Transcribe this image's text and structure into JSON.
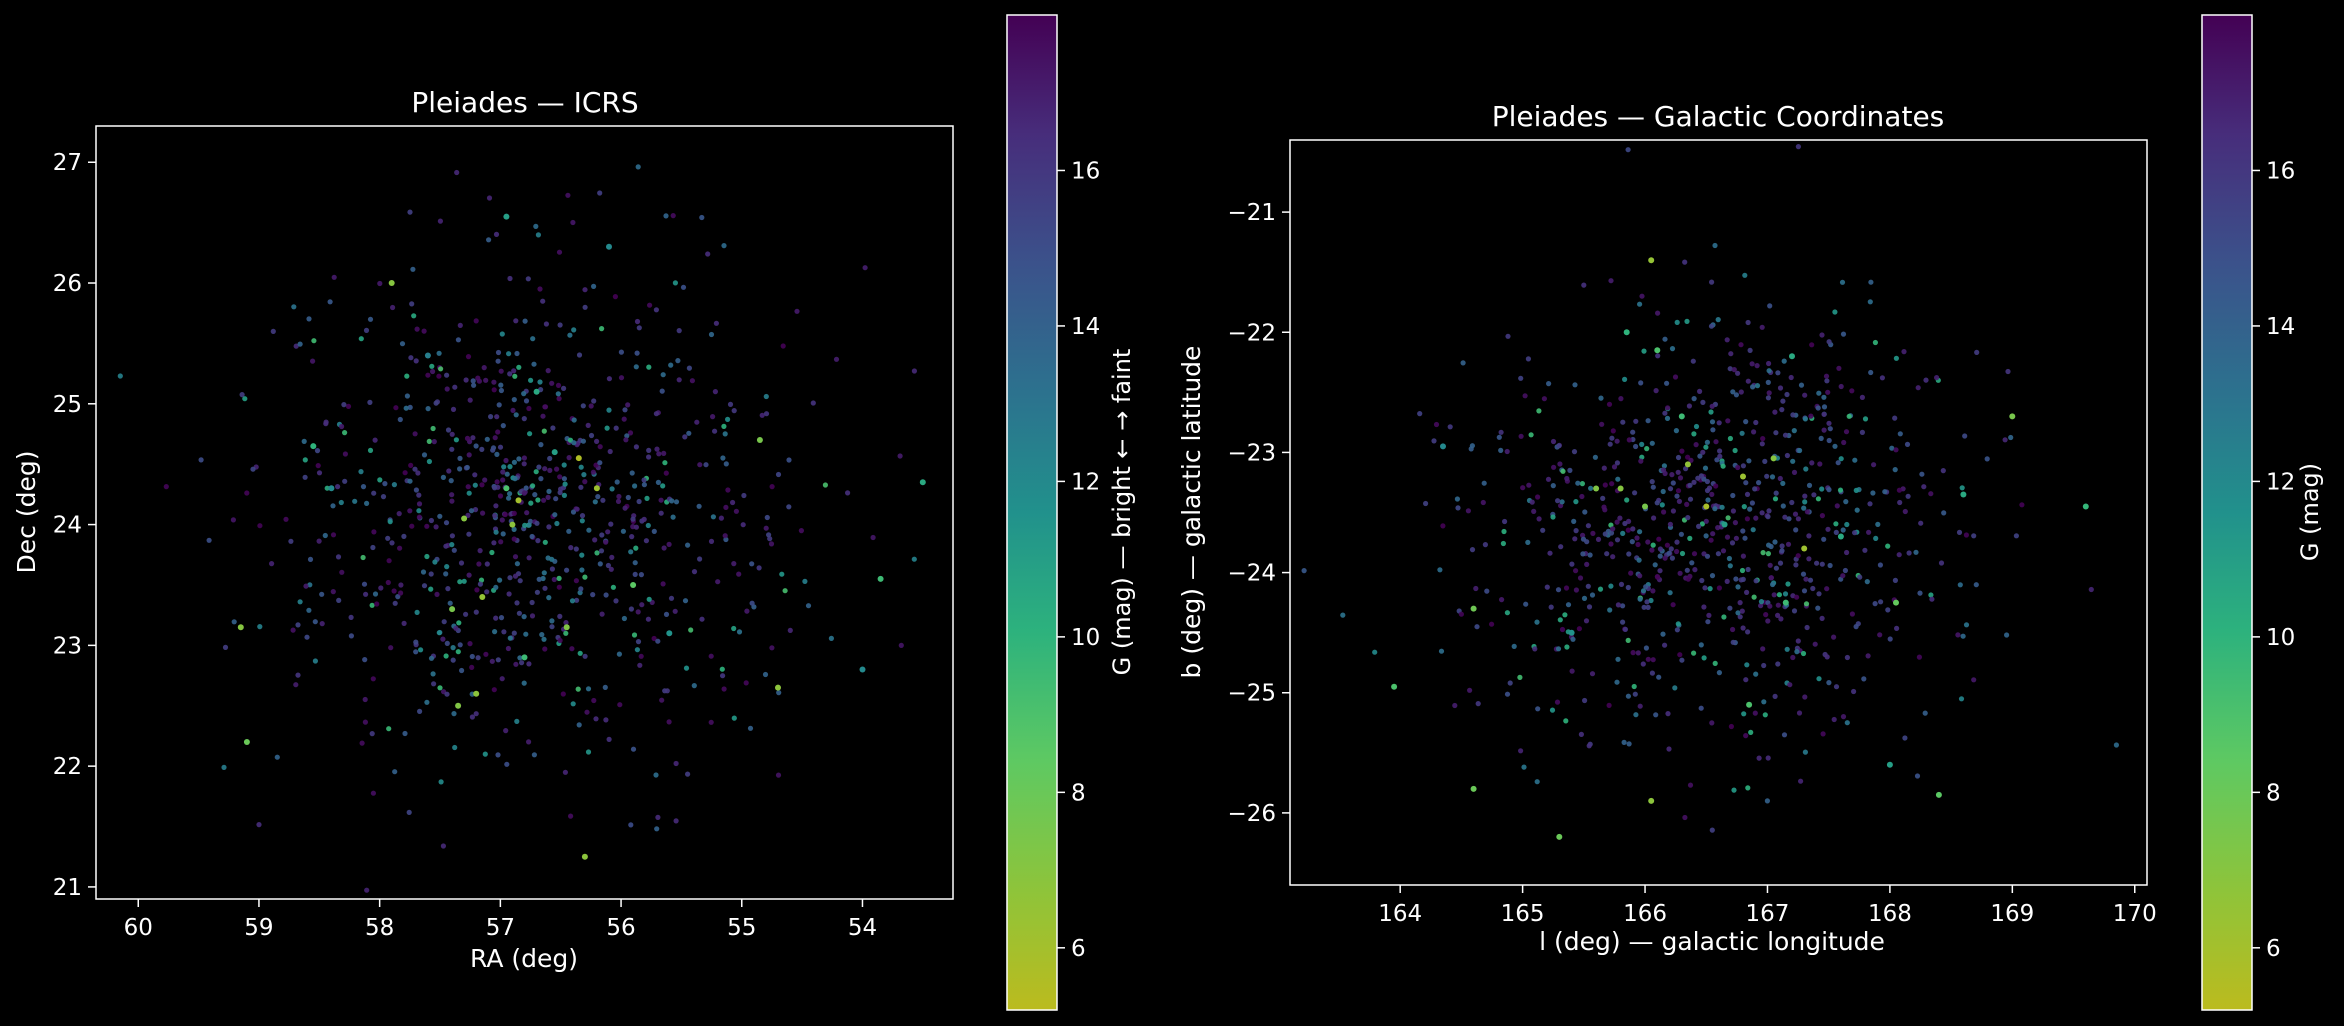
{
  "background_color": "#000000",
  "foreground_color": "#ffffff",
  "colormap": "viridis_r",
  "chart_data": [
    {
      "type": "scatter",
      "title": "Pleiades — ICRS",
      "xlabel": "RA (deg)",
      "ylabel": "Dec (deg)",
      "xlim": [
        60.35,
        53.25
      ],
      "ylim": [
        20.9,
        27.3
      ],
      "xticks": [
        60,
        59,
        58,
        57,
        56,
        55,
        54
      ],
      "yticks": [
        21,
        22,
        23,
        24,
        25,
        26,
        27
      ],
      "x_inverted": true,
      "grid": false,
      "point_count": 850,
      "center": [
        56.75,
        24.12
      ],
      "spread": [
        1.05,
        0.95
      ],
      "colorbar": {
        "label": "G (mag) — bright ← → faint",
        "range": [
          5.2,
          18.0
        ],
        "ticks": [
          6,
          8,
          10,
          12,
          14,
          16
        ]
      },
      "series": [
        {
          "name": "",
          "points": [
            [
              56.35,
              24.55,
              5.6
            ],
            [
              56.2,
              24.3,
              6.2
            ],
            [
              56.85,
              24.2,
              6.0
            ],
            [
              56.9,
              24.0,
              6.8
            ],
            [
              57.3,
              24.05,
              7.0
            ],
            [
              57.15,
              23.4,
              6.5
            ],
            [
              56.45,
              23.15,
              7.2
            ],
            [
              56.8,
              22.9,
              9.5
            ],
            [
              57.4,
              23.3,
              7.5
            ],
            [
              57.9,
              26.0,
              7.0
            ],
            [
              54.7,
              22.65,
              6.8
            ],
            [
              57.2,
              22.6,
              6.8
            ],
            [
              57.35,
              22.5,
              7.2
            ],
            [
              59.15,
              23.15,
              7.0
            ],
            [
              54.85,
              24.7,
              7.5
            ],
            [
              56.3,
              21.25,
              6.8
            ],
            [
              59.1,
              22.2,
              8.0
            ],
            [
              55.9,
              23.5,
              8.5
            ],
            [
              56.95,
              24.3,
              9.0
            ],
            [
              56.7,
              25.1,
              10.5
            ],
            [
              56.55,
              24.6,
              11.0
            ],
            [
              58.4,
              24.3,
              12.0
            ],
            [
              55.6,
              23.1,
              11.5
            ],
            [
              57.6,
              25.4,
              12.5
            ],
            [
              56.1,
              26.3,
              12.0
            ],
            [
              53.85,
              23.55,
              9.5
            ],
            [
              54.0,
              22.8,
              12.0
            ],
            [
              53.5,
              24.35,
              10.5
            ],
            [
              56.95,
              26.55,
              11.0
            ],
            [
              58.55,
              24.65,
              10.0
            ]
          ]
        }
      ]
    },
    {
      "type": "scatter",
      "title": "Pleiades — Galactic Coordinates",
      "xlabel": "l (deg) — galactic longitude",
      "ylabel": "b (deg) — galactic latitude",
      "xlim": [
        163.1,
        170.1
      ],
      "ylim": [
        -26.6,
        -20.4
      ],
      "xticks": [
        164,
        165,
        166,
        167,
        168,
        169,
        170
      ],
      "yticks": [
        -21,
        -22,
        -23,
        -24,
        -25,
        -26
      ],
      "x_inverted": false,
      "grid": false,
      "point_count": 850,
      "center": [
        166.55,
        -23.55
      ],
      "spread": [
        1.0,
        0.9
      ],
      "colorbar": {
        "label": "G (mag)",
        "range": [
          5.2,
          18.0
        ],
        "ticks": [
          6,
          8,
          10,
          12,
          14,
          16
        ]
      },
      "series": [
        {
          "name": "",
          "points": [
            [
              166.05,
              -21.4,
              6.5
            ],
            [
              166.05,
              -25.9,
              6.8
            ],
            [
              167.3,
              -23.8,
              6.2
            ],
            [
              166.5,
              -23.45,
              5.8
            ],
            [
              166.8,
              -23.2,
              6.3
            ],
            [
              167.05,
              -23.05,
              7.0
            ],
            [
              165.8,
              -23.3,
              7.0
            ],
            [
              166.35,
              -23.1,
              6.6
            ],
            [
              165.6,
              -23.3,
              7.2
            ],
            [
              166.0,
              -23.45,
              7.5
            ],
            [
              164.6,
              -24.3,
              7.8
            ],
            [
              164.6,
              -25.8,
              8.0
            ],
            [
              169.0,
              -22.7,
              7.5
            ],
            [
              168.05,
              -24.25,
              8.2
            ],
            [
              168.4,
              -25.85,
              8.5
            ],
            [
              166.85,
              -25.1,
              9.0
            ],
            [
              166.3,
              -22.7,
              9.5
            ],
            [
              166.1,
              -22.15,
              9.0
            ],
            [
              167.2,
              -22.2,
              10.5
            ],
            [
              165.85,
              -22.0,
              10.0
            ],
            [
              163.95,
              -24.95,
              9.0
            ],
            [
              167.6,
              -23.7,
              10.5
            ],
            [
              166.65,
              -23.6,
              11.0
            ],
            [
              165.4,
              -24.5,
              11.5
            ],
            [
              168.6,
              -23.35,
              10.5
            ],
            [
              169.6,
              -23.45,
              9.8
            ],
            [
              164.35,
              -22.95,
              12.0
            ],
            [
              165.3,
              -26.2,
              8.0
            ],
            [
              168.0,
              -25.6,
              11.0
            ],
            [
              167.15,
              -24.25,
              9.5
            ]
          ]
        }
      ]
    }
  ]
}
